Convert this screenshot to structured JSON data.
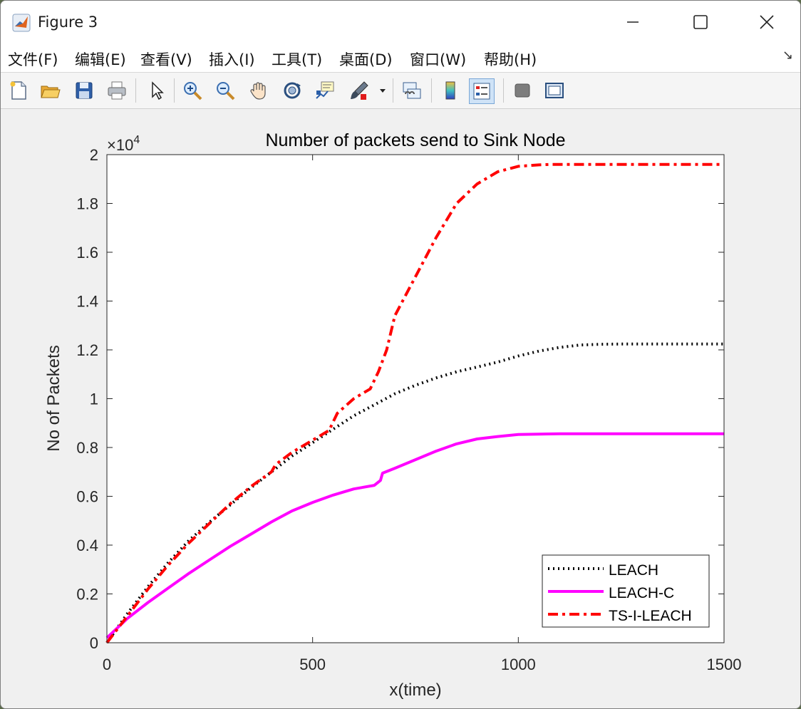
{
  "window": {
    "title": "Figure 3",
    "controls": {
      "minimize": "minimize",
      "maximize": "maximize",
      "close": "close"
    }
  },
  "menu": {
    "items": [
      "文件(F)",
      "编辑(E)",
      "查看(V)",
      "插入(I)",
      "工具(T)",
      "桌面(D)",
      "窗口(W)",
      "帮助(H)"
    ],
    "overflow": "↘"
  },
  "toolbar": {
    "icons": [
      "new-figure-icon",
      "open-file-icon",
      "save-icon",
      "print-icon",
      "pointer-icon",
      "zoom-in-icon",
      "zoom-out-icon",
      "pan-hand-icon",
      "rotate-3d-icon",
      "data-cursor-icon",
      "brush-icon",
      "brush-dropdown-icon",
      "link-plot-icon",
      "colorbar-icon",
      "legend-icon",
      "hide-plot-tools-icon",
      "show-plot-tools-icon"
    ]
  },
  "chart_data": {
    "type": "line",
    "title": "Number of packets send to Sink Node",
    "xlabel": "x(time)",
    "ylabel": "No of Packets",
    "xlim": [
      0,
      1500
    ],
    "ylim": [
      0,
      20000
    ],
    "exponent_label": "×10",
    "exponent_power": "4",
    "xticks": [
      0,
      500,
      1000,
      1500
    ],
    "xtick_labels": [
      "0",
      "500",
      "1000",
      "1500"
    ],
    "yticks": [
      0,
      2000,
      4000,
      6000,
      8000,
      10000,
      12000,
      14000,
      16000,
      18000,
      20000
    ],
    "ytick_labels": [
      "0",
      "0.2",
      "0.4",
      "0.6",
      "0.8",
      "1",
      "1.2",
      "1.4",
      "1.6",
      "1.8",
      "2"
    ],
    "legend_position": "bottom-right",
    "grid": false,
    "series": [
      {
        "name": "LEACH",
        "color": "#000000",
        "style": "dotted",
        "x": [
          0,
          50,
          100,
          150,
          200,
          250,
          300,
          350,
          400,
          450,
          500,
          550,
          600,
          650,
          700,
          750,
          800,
          850,
          900,
          950,
          1000,
          1050,
          1100,
          1150,
          1200,
          1250,
          1300,
          1350,
          1400,
          1450,
          1500
        ],
        "y": [
          0,
          1200,
          2300,
          3300,
          4200,
          4950,
          5650,
          6350,
          7000,
          7650,
          8200,
          8750,
          9300,
          9750,
          10200,
          10550,
          10850,
          11100,
          11300,
          11500,
          11750,
          11950,
          12100,
          12200,
          12230,
          12240,
          12240,
          12240,
          12240,
          12240,
          12240
        ]
      },
      {
        "name": "LEACH-C",
        "color": "#ff00ff",
        "style": "solid",
        "x": [
          0,
          50,
          100,
          150,
          200,
          250,
          300,
          350,
          400,
          450,
          500,
          550,
          600,
          650,
          665,
          670,
          700,
          750,
          800,
          850,
          900,
          950,
          1000,
          1050,
          1100,
          1150,
          1200,
          1300,
          1400,
          1500
        ],
        "y": [
          200,
          1000,
          1650,
          2250,
          2850,
          3400,
          3950,
          4450,
          4950,
          5400,
          5750,
          6050,
          6300,
          6450,
          6650,
          6950,
          7150,
          7500,
          7850,
          8150,
          8350,
          8450,
          8530,
          8550,
          8560,
          8560,
          8560,
          8560,
          8560,
          8560
        ]
      },
      {
        "name": "TS-I-LEACH",
        "color": "#ff0000",
        "style": "dashdot",
        "x": [
          0,
          50,
          100,
          150,
          200,
          250,
          300,
          350,
          400,
          410,
          450,
          500,
          540,
          560,
          600,
          640,
          660,
          680,
          700,
          750,
          800,
          850,
          900,
          950,
          1000,
          1050,
          1080,
          1100,
          1200,
          1300,
          1400,
          1500
        ],
        "y": [
          0,
          1100,
          2200,
          3200,
          4100,
          4900,
          5700,
          6400,
          7000,
          7300,
          7800,
          8300,
          8700,
          9400,
          10000,
          10400,
          11100,
          12000,
          13400,
          15000,
          16600,
          18000,
          18800,
          19300,
          19520,
          19580,
          19600,
          19600,
          19600,
          19600,
          19600,
          19600
        ]
      }
    ]
  }
}
